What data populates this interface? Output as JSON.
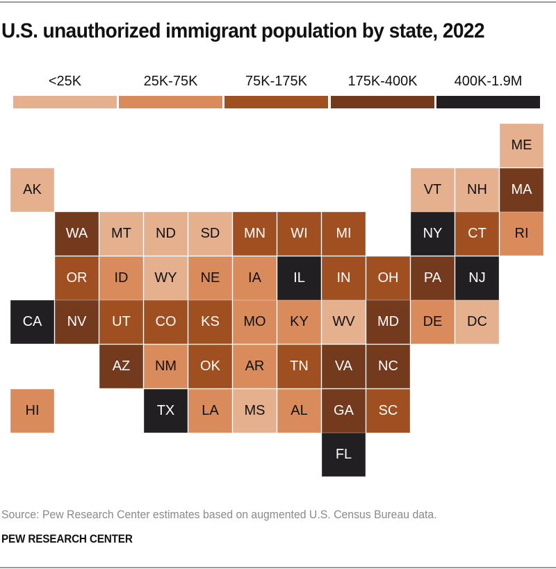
{
  "chart_data": {
    "type": "heatmap",
    "subtype": "tile-grid-map",
    "title": "U.S. unauthorized immigrant population by state, 2022",
    "legend": {
      "placement": "top",
      "bins": [
        {
          "label": "<25K",
          "color": "#e4b08e",
          "text_color": "#111111"
        },
        {
          "label": "25K-75K",
          "color": "#d98b5c",
          "text_color": "#111111"
        },
        {
          "label": "75K-175K",
          "color": "#a04f20",
          "text_color": "#ffffff"
        },
        {
          "label": "175K-400K",
          "color": "#743a1d",
          "text_color": "#ffffff"
        },
        {
          "label": "400K-1.9M",
          "color": "#221f23",
          "text_color": "#ffffff"
        }
      ]
    },
    "states": [
      {
        "abbr": "ME",
        "row": 0,
        "col": 11,
        "bin": 0
      },
      {
        "abbr": "AK",
        "row": 1,
        "col": 0,
        "bin": 0
      },
      {
        "abbr": "VT",
        "row": 1,
        "col": 9,
        "bin": 0
      },
      {
        "abbr": "NH",
        "row": 1,
        "col": 10,
        "bin": 0
      },
      {
        "abbr": "MA",
        "row": 1,
        "col": 11,
        "bin": 3
      },
      {
        "abbr": "WA",
        "row": 2,
        "col": 1,
        "bin": 3
      },
      {
        "abbr": "MT",
        "row": 2,
        "col": 2,
        "bin": 0
      },
      {
        "abbr": "ND",
        "row": 2,
        "col": 3,
        "bin": 0
      },
      {
        "abbr": "SD",
        "row": 2,
        "col": 4,
        "bin": 0
      },
      {
        "abbr": "MN",
        "row": 2,
        "col": 5,
        "bin": 2
      },
      {
        "abbr": "WI",
        "row": 2,
        "col": 6,
        "bin": 2
      },
      {
        "abbr": "MI",
        "row": 2,
        "col": 7,
        "bin": 2
      },
      {
        "abbr": "NY",
        "row": 2,
        "col": 9,
        "bin": 4
      },
      {
        "abbr": "CT",
        "row": 2,
        "col": 10,
        "bin": 2
      },
      {
        "abbr": "RI",
        "row": 2,
        "col": 11,
        "bin": 1
      },
      {
        "abbr": "OR",
        "row": 3,
        "col": 1,
        "bin": 2
      },
      {
        "abbr": "ID",
        "row": 3,
        "col": 2,
        "bin": 1
      },
      {
        "abbr": "WY",
        "row": 3,
        "col": 3,
        "bin": 0
      },
      {
        "abbr": "NE",
        "row": 3,
        "col": 4,
        "bin": 1
      },
      {
        "abbr": "IA",
        "row": 3,
        "col": 5,
        "bin": 1
      },
      {
        "abbr": "IL",
        "row": 3,
        "col": 6,
        "bin": 4
      },
      {
        "abbr": "IN",
        "row": 3,
        "col": 7,
        "bin": 2
      },
      {
        "abbr": "OH",
        "row": 3,
        "col": 8,
        "bin": 2
      },
      {
        "abbr": "PA",
        "row": 3,
        "col": 9,
        "bin": 3
      },
      {
        "abbr": "NJ",
        "row": 3,
        "col": 10,
        "bin": 4
      },
      {
        "abbr": "CA",
        "row": 4,
        "col": 0,
        "bin": 4
      },
      {
        "abbr": "NV",
        "row": 4,
        "col": 1,
        "bin": 3
      },
      {
        "abbr": "UT",
        "row": 4,
        "col": 2,
        "bin": 2
      },
      {
        "abbr": "CO",
        "row": 4,
        "col": 3,
        "bin": 2
      },
      {
        "abbr": "KS",
        "row": 4,
        "col": 4,
        "bin": 2
      },
      {
        "abbr": "MO",
        "row": 4,
        "col": 5,
        "bin": 1
      },
      {
        "abbr": "KY",
        "row": 4,
        "col": 6,
        "bin": 1
      },
      {
        "abbr": "WV",
        "row": 4,
        "col": 7,
        "bin": 0
      },
      {
        "abbr": "MD",
        "row": 4,
        "col": 8,
        "bin": 3
      },
      {
        "abbr": "DE",
        "row": 4,
        "col": 9,
        "bin": 1
      },
      {
        "abbr": "DC",
        "row": 4,
        "col": 10,
        "bin": 0
      },
      {
        "abbr": "AZ",
        "row": 5,
        "col": 2,
        "bin": 3
      },
      {
        "abbr": "NM",
        "row": 5,
        "col": 3,
        "bin": 1
      },
      {
        "abbr": "OK",
        "row": 5,
        "col": 4,
        "bin": 2
      },
      {
        "abbr": "AR",
        "row": 5,
        "col": 5,
        "bin": 1
      },
      {
        "abbr": "TN",
        "row": 5,
        "col": 6,
        "bin": 2
      },
      {
        "abbr": "VA",
        "row": 5,
        "col": 7,
        "bin": 3
      },
      {
        "abbr": "NC",
        "row": 5,
        "col": 8,
        "bin": 3
      },
      {
        "abbr": "HI",
        "row": 6,
        "col": 0,
        "bin": 1
      },
      {
        "abbr": "TX",
        "row": 6,
        "col": 3,
        "bin": 4
      },
      {
        "abbr": "LA",
        "row": 6,
        "col": 4,
        "bin": 1
      },
      {
        "abbr": "MS",
        "row": 6,
        "col": 5,
        "bin": 0
      },
      {
        "abbr": "AL",
        "row": 6,
        "col": 6,
        "bin": 1
      },
      {
        "abbr": "GA",
        "row": 6,
        "col": 7,
        "bin": 3
      },
      {
        "abbr": "SC",
        "row": 6,
        "col": 8,
        "bin": 2
      },
      {
        "abbr": "FL",
        "row": 7,
        "col": 7,
        "bin": 4
      }
    ],
    "source": "Source: Pew Research Center estimates based on augmented U.S. Census Bureau data.",
    "credit": "PEW RESEARCH CENTER"
  }
}
